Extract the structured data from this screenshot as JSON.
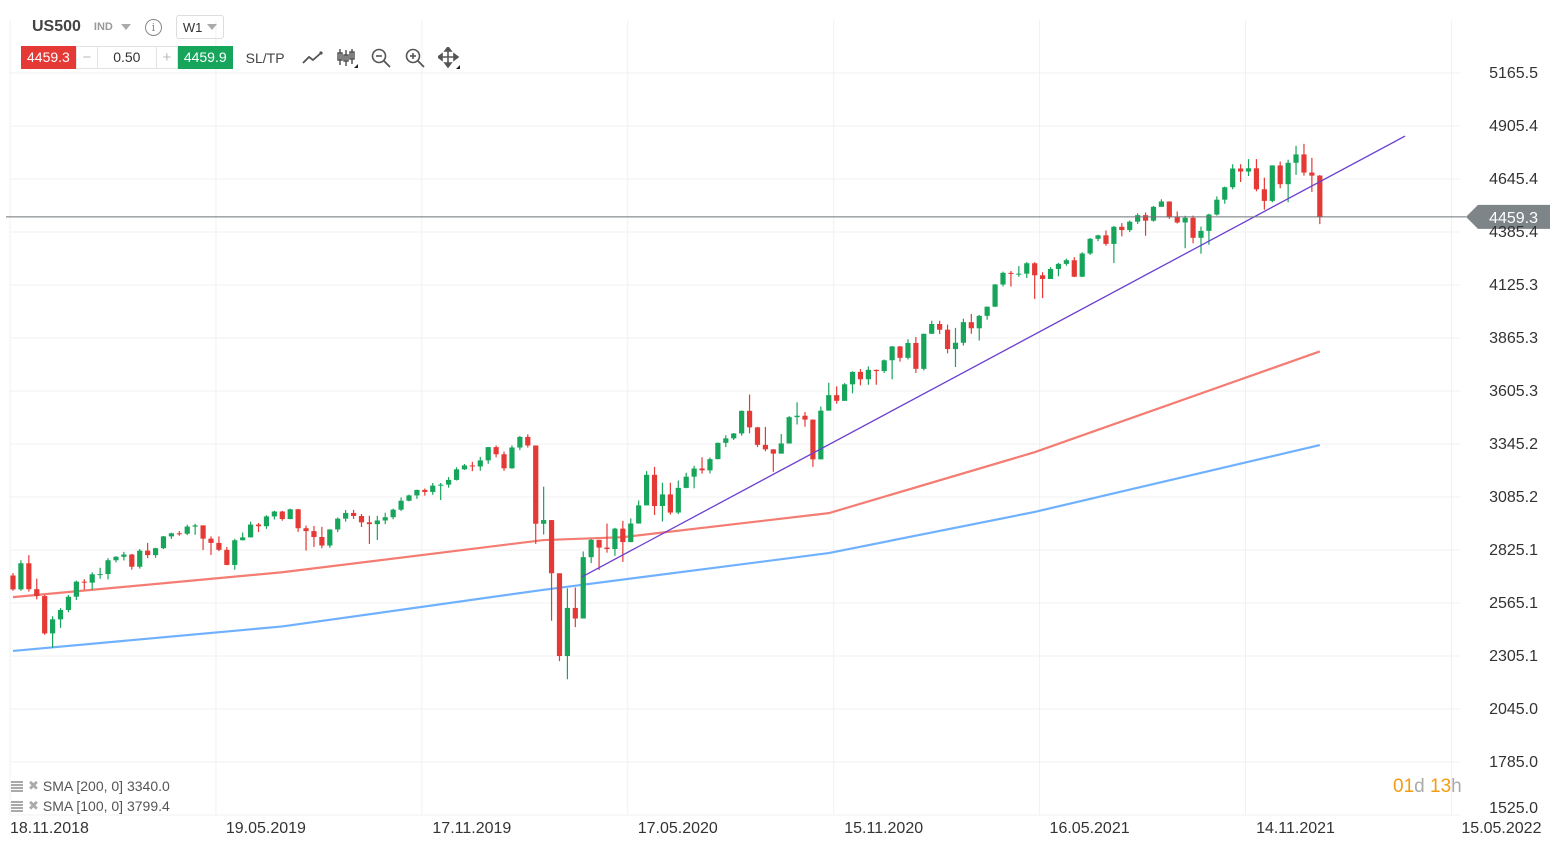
{
  "header": {
    "symbol": "US500",
    "class": "IND",
    "timeframe": "W1",
    "info_icon": "info-icon"
  },
  "trade": {
    "sell_price": "4459.3",
    "buy_price": "4459.9",
    "quantity": "0.50",
    "minus": "−",
    "plus": "+",
    "sltp_label": "SL/TP"
  },
  "tools": [
    "line-chart-icon",
    "candlestick-icon",
    "zoom-out-icon",
    "zoom-in-icon",
    "move-icon"
  ],
  "indicators": [
    {
      "label": "SMA [200, 0] 3340.0",
      "color": "#6fb1ff"
    },
    {
      "label": "SMA [100, 0] 3799.4",
      "color": "#f47c72"
    }
  ],
  "countdown": {
    "days": "01",
    "d": "d",
    "hours": "13",
    "h": "h"
  },
  "colors": {
    "up": "#17a55b",
    "down": "#e53935",
    "price_line": "#6d7478",
    "trendline": "#6a3fd0"
  },
  "chart_data": {
    "type": "candlestick",
    "interval": "W1",
    "first_week": "18.11.2018",
    "y_ticks": [
      "5165.5",
      "4905.4",
      "4645.4",
      "4385.4",
      "4125.3",
      "3865.3",
      "3605.3",
      "3345.2",
      "3085.2",
      "2825.1",
      "2565.1",
      "2305.1",
      "2045.0",
      "1785.0",
      "1525.0"
    ],
    "ylim": [
      1525.0,
      5165.5
    ],
    "x_ticks": [
      "18.11.2018",
      "19.05.2019",
      "17.11.2019",
      "17.05.2020",
      "15.11.2020",
      "16.05.2021",
      "14.11.2021",
      "15.05.2022"
    ],
    "grid": true,
    "current_price": "4459.3",
    "ohlc": [
      [
        2700,
        2712,
        2625,
        2632
      ],
      [
        2632,
        2775,
        2625,
        2760
      ],
      [
        2760,
        2800,
        2621,
        2633
      ],
      [
        2633,
        2685,
        2583,
        2599
      ],
      [
        2599,
        2605,
        2409,
        2416
      ],
      [
        2416,
        2500,
        2346,
        2485
      ],
      [
        2485,
        2540,
        2443,
        2531
      ],
      [
        2531,
        2604,
        2520,
        2596
      ],
      [
        2596,
        2675,
        2580,
        2670
      ],
      [
        2670,
        2682,
        2631,
        2665
      ],
      [
        2665,
        2716,
        2631,
        2706
      ],
      [
        2706,
        2738,
        2684,
        2707
      ],
      [
        2707,
        2785,
        2681,
        2775
      ],
      [
        2775,
        2795,
        2764,
        2792
      ],
      [
        2792,
        2816,
        2774,
        2803
      ],
      [
        2803,
        2806,
        2729,
        2743
      ],
      [
        2743,
        2830,
        2734,
        2822
      ],
      [
        2822,
        2860,
        2785,
        2800
      ],
      [
        2800,
        2836,
        2787,
        2834
      ],
      [
        2834,
        2894,
        2830,
        2892
      ],
      [
        2892,
        2910,
        2880,
        2907
      ],
      [
        2907,
        2918,
        2895,
        2905
      ],
      [
        2905,
        2949,
        2898,
        2940
      ],
      [
        2940,
        2954,
        2900,
        2946
      ],
      [
        2946,
        2946,
        2825,
        2881
      ],
      [
        2881,
        2892,
        2801,
        2860
      ],
      [
        2860,
        2892,
        2819,
        2826
      ],
      [
        2826,
        2840,
        2750,
        2752
      ],
      [
        2752,
        2880,
        2728,
        2873
      ],
      [
        2873,
        2911,
        2872,
        2887
      ],
      [
        2887,
        2964,
        2887,
        2950
      ],
      [
        2950,
        2958,
        2913,
        2942
      ],
      [
        2942,
        2996,
        2929,
        2990
      ],
      [
        2990,
        3018,
        2975,
        3014
      ],
      [
        3014,
        3017,
        2969,
        2977
      ],
      [
        2977,
        3028,
        2976,
        3025
      ],
      [
        3025,
        3027,
        2914,
        2932
      ],
      [
        2932,
        2945,
        2822,
        2918
      ],
      [
        2918,
        2943,
        2840,
        2889
      ],
      [
        2889,
        2939,
        2834,
        2847
      ],
      [
        2847,
        2927,
        2836,
        2926
      ],
      [
        2926,
        2985,
        2913,
        2979
      ],
      [
        2979,
        3021,
        2964,
        3007
      ],
      [
        3007,
        3022,
        2978,
        2992
      ],
      [
        2992,
        3002,
        2938,
        2961
      ],
      [
        2961,
        2993,
        2855,
        2952
      ],
      [
        2952,
        2993,
        2874,
        2970
      ],
      [
        2970,
        3008,
        2952,
        2986
      ],
      [
        2986,
        3028,
        2976,
        3023
      ],
      [
        3023,
        3083,
        3017,
        3067
      ],
      [
        3067,
        3097,
        3064,
        3093
      ],
      [
        3093,
        3121,
        3076,
        3120
      ],
      [
        3120,
        3127,
        3092,
        3110
      ],
      [
        3110,
        3154,
        3096,
        3141
      ],
      [
        3141,
        3154,
        3070,
        3146
      ],
      [
        3146,
        3183,
        3131,
        3169
      ],
      [
        3169,
        3231,
        3166,
        3221
      ],
      [
        3221,
        3247,
        3218,
        3240
      ],
      [
        3240,
        3258,
        3212,
        3235
      ],
      [
        3235,
        3282,
        3214,
        3265
      ],
      [
        3265,
        3330,
        3248,
        3330
      ],
      [
        3330,
        3338,
        3280,
        3295
      ],
      [
        3295,
        3308,
        3214,
        3226
      ],
      [
        3226,
        3338,
        3224,
        3328
      ],
      [
        3328,
        3385,
        3315,
        3380
      ],
      [
        3380,
        3393,
        3328,
        3338
      ],
      [
        3338,
        3338,
        2855,
        2954
      ],
      [
        2954,
        3136,
        2901,
        2972
      ],
      [
        2972,
        2972,
        2478,
        2711
      ],
      [
        2711,
        2711,
        2280,
        2305
      ],
      [
        2305,
        2637,
        2191,
        2541
      ],
      [
        2541,
        2641,
        2447,
        2489
      ],
      [
        2489,
        2818,
        2489,
        2790
      ],
      [
        2790,
        2880,
        2761,
        2875
      ],
      [
        2875,
        2875,
        2727,
        2837
      ],
      [
        2837,
        2955,
        2812,
        2830
      ],
      [
        2830,
        2934,
        2797,
        2930
      ],
      [
        2930,
        2968,
        2767,
        2864
      ],
      [
        2864,
        2980,
        2864,
        2955
      ],
      [
        2955,
        3068,
        2955,
        3044
      ],
      [
        3044,
        3212,
        3044,
        3194
      ],
      [
        3194,
        3233,
        2997,
        3041
      ],
      [
        3041,
        3155,
        2965,
        3098
      ],
      [
        3098,
        3155,
        2999,
        3009
      ],
      [
        3009,
        3166,
        3001,
        3130
      ],
      [
        3130,
        3204,
        3128,
        3185
      ],
      [
        3185,
        3238,
        3128,
        3225
      ],
      [
        3225,
        3280,
        3200,
        3216
      ],
      [
        3216,
        3279,
        3201,
        3271
      ],
      [
        3271,
        3352,
        3270,
        3351
      ],
      [
        3351,
        3388,
        3330,
        3373
      ],
      [
        3373,
        3399,
        3365,
        3397
      ],
      [
        3397,
        3509,
        3386,
        3508
      ],
      [
        3508,
        3588,
        3398,
        3427
      ],
      [
        3427,
        3429,
        3330,
        3341
      ],
      [
        3341,
        3429,
        3310,
        3319
      ],
      [
        3319,
        3320,
        3209,
        3298
      ],
      [
        3298,
        3394,
        3298,
        3348
      ],
      [
        3348,
        3482,
        3347,
        3477
      ],
      [
        3477,
        3550,
        3441,
        3484
      ],
      [
        3484,
        3502,
        3430,
        3465
      ],
      [
        3465,
        3466,
        3233,
        3270
      ],
      [
        3270,
        3529,
        3270,
        3509
      ],
      [
        3509,
        3646,
        3509,
        3585
      ],
      [
        3585,
        3628,
        3543,
        3557
      ],
      [
        3557,
        3644,
        3557,
        3638
      ],
      [
        3638,
        3702,
        3594,
        3699
      ],
      [
        3699,
        3713,
        3633,
        3663
      ],
      [
        3663,
        3726,
        3636,
        3709
      ],
      [
        3709,
        3711,
        3636,
        3703
      ],
      [
        3703,
        3760,
        3694,
        3756
      ],
      [
        3756,
        3826,
        3663,
        3824
      ],
      [
        3824,
        3826,
        3749,
        3768
      ],
      [
        3768,
        3859,
        3760,
        3841
      ],
      [
        3841,
        3870,
        3694,
        3714
      ],
      [
        3714,
        3887,
        3706,
        3886
      ],
      [
        3886,
        3950,
        3885,
        3934
      ],
      [
        3934,
        3950,
        3885,
        3906
      ],
      [
        3906,
        3931,
        3790,
        3811
      ],
      [
        3811,
        3915,
        3723,
        3842
      ],
      [
        3842,
        3960,
        3828,
        3943
      ],
      [
        3943,
        3983,
        3886,
        3913
      ],
      [
        3913,
        3978,
        3853,
        3974
      ],
      [
        3974,
        4020,
        3955,
        4019
      ],
      [
        4019,
        4130,
        4017,
        4128
      ],
      [
        4128,
        4191,
        4118,
        4185
      ],
      [
        4185,
        4194,
        4118,
        4180
      ],
      [
        4180,
        4218,
        4166,
        4181
      ],
      [
        4181,
        4238,
        4160,
        4232
      ],
      [
        4232,
        4237,
        4057,
        4173
      ],
      [
        4173,
        4188,
        4061,
        4155
      ],
      [
        4155,
        4213,
        4155,
        4204
      ],
      [
        4204,
        4234,
        4168,
        4229
      ],
      [
        4229,
        4255,
        4220,
        4247
      ],
      [
        4247,
        4262,
        4164,
        4166
      ],
      [
        4166,
        4286,
        4165,
        4280
      ],
      [
        4280,
        4356,
        4273,
        4352
      ],
      [
        4352,
        4372,
        4340,
        4369
      ],
      [
        4369,
        4393,
        4318,
        4327
      ],
      [
        4327,
        4415,
        4233,
        4411
      ],
      [
        4411,
        4429,
        4364,
        4395
      ],
      [
        4395,
        4442,
        4385,
        4436
      ],
      [
        4436,
        4477,
        4425,
        4468
      ],
      [
        4468,
        4481,
        4367,
        4441
      ],
      [
        4441,
        4513,
        4436,
        4509
      ],
      [
        4509,
        4546,
        4509,
        4535
      ],
      [
        4535,
        4536,
        4450,
        4458
      ],
      [
        4458,
        4486,
        4427,
        4432
      ],
      [
        4432,
        4465,
        4306,
        4455
      ],
      [
        4455,
        4466,
        4330,
        4357
      ],
      [
        4357,
        4412,
        4279,
        4391
      ],
      [
        4391,
        4475,
        4323,
        4471
      ],
      [
        4471,
        4560,
        4466,
        4544
      ],
      [
        4544,
        4608,
        4524,
        4605
      ],
      [
        4605,
        4718,
        4595,
        4697
      ],
      [
        4697,
        4718,
        4631,
        4682
      ],
      [
        4682,
        4743,
        4660,
        4698
      ],
      [
        4698,
        4743,
        4585,
        4595
      ],
      [
        4595,
        4652,
        4495,
        4538
      ],
      [
        4538,
        4713,
        4531,
        4712
      ],
      [
        4712,
        4731,
        4600,
        4620
      ],
      [
        4620,
        4740,
        4531,
        4725
      ],
      [
        4725,
        4808,
        4666,
        4766
      ],
      [
        4766,
        4818,
        4662,
        4677
      ],
      [
        4677,
        4749,
        4582,
        4662
      ],
      [
        4662,
        4665,
        4424,
        4459.3
      ]
    ],
    "sma200": {
      "week_index": [
        0,
        34,
        67,
        103,
        129,
        165
      ],
      "values": [
        2330,
        2450,
        2630,
        2810,
        3012,
        3340.0
      ]
    },
    "sma100": {
      "week_index": [
        0,
        34,
        67,
        77,
        103,
        129,
        165
      ],
      "values": [
        2594,
        2716,
        2874,
        2888,
        3006,
        3305,
        3799.4
      ]
    },
    "trendline": {
      "from": {
        "date": "06.04.2020",
        "value": 2692
      },
      "to": {
        "date": "04.04.2022",
        "value": 4856
      }
    }
  }
}
